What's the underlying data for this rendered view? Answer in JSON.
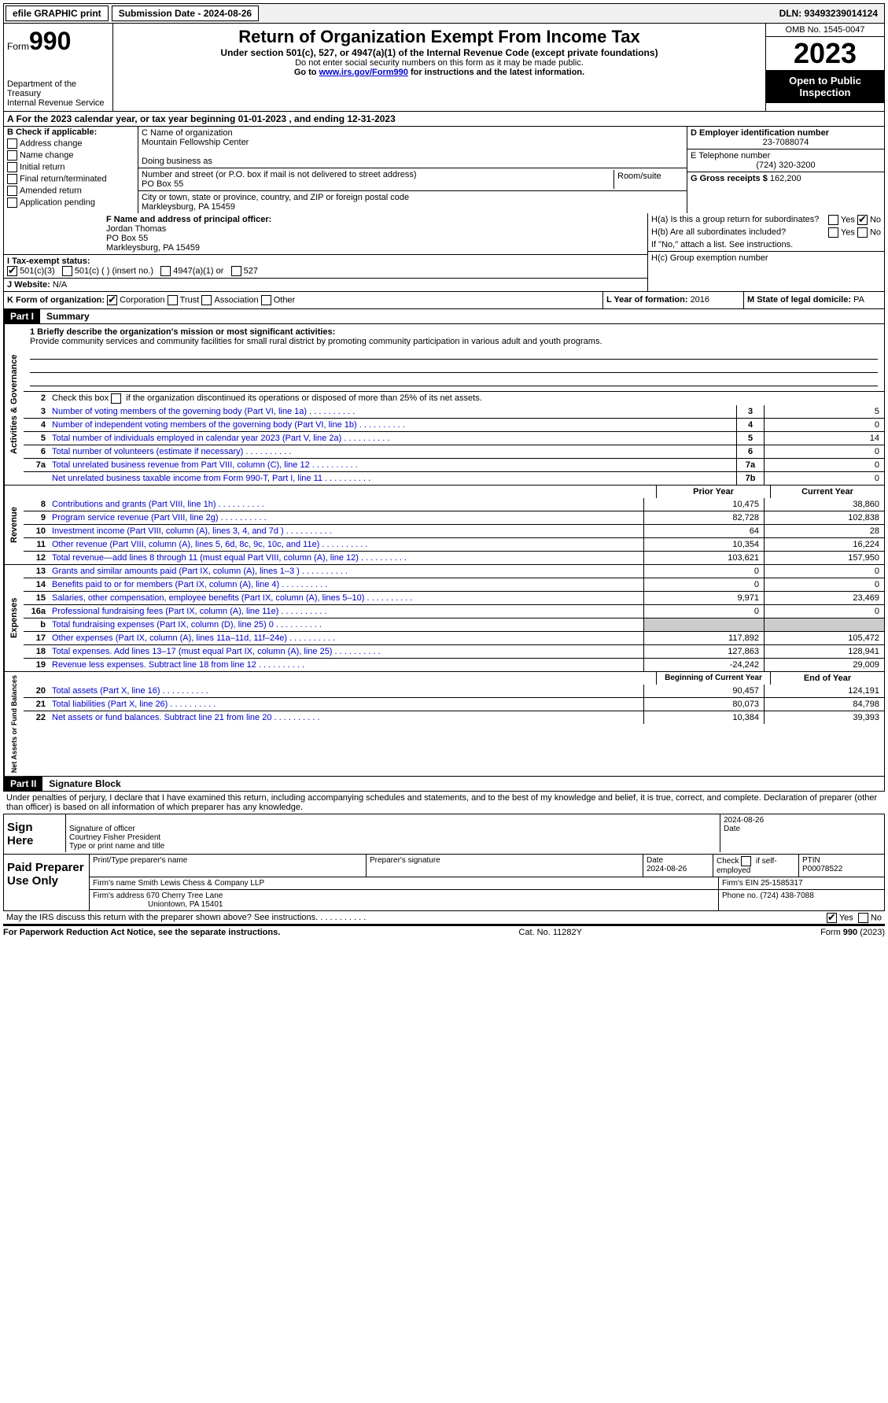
{
  "topbar": {
    "efile": "efile GRAPHIC print",
    "submission_label": "Submission Date - 2024-08-26",
    "dln": "DLN: 93493239014124"
  },
  "header": {
    "form_label": "Form",
    "form_no": "990",
    "dept": "Department of the Treasury",
    "irs": "Internal Revenue Service",
    "title": "Return of Organization Exempt From Income Tax",
    "sub1": "Under section 501(c), 527, or 4947(a)(1) of the Internal Revenue Code (except private foundations)",
    "sub2": "Do not enter social security numbers on this form as it may be made public.",
    "sub3_pre": "Go to ",
    "sub3_link": "www.irs.gov/Form990",
    "sub3_post": " for instructions and the latest information.",
    "omb": "OMB No. 1545-0047",
    "year": "2023",
    "open": "Open to Public Inspection"
  },
  "row_a": {
    "text": "A For the 2023 calendar year, or tax year beginning 01-01-2023    , and ending 12-31-2023"
  },
  "col_b": {
    "header": "B Check if applicable:",
    "items": [
      "Address change",
      "Name change",
      "Initial return",
      "Final return/terminated",
      "Amended return",
      "Application pending"
    ]
  },
  "col_c": {
    "name_label": "C Name of organization",
    "name": "Mountain Fellowship Center",
    "dba_label": "Doing business as",
    "addr_label": "Number and street (or P.O. box if mail is not delivered to street address)",
    "addr": "PO Box 55",
    "room_label": "Room/suite",
    "city_label": "City or town, state or province, country, and ZIP or foreign postal code",
    "city": "Markleysburg, PA  15459"
  },
  "col_d": {
    "ein_label": "D Employer identification number",
    "ein": "23-7088074",
    "tel_label": "E Telephone number",
    "tel": "(724) 320-3200",
    "gross_label": "G Gross receipts $",
    "gross": "162,200"
  },
  "section_f": {
    "label": "F  Name and address of principal officer:",
    "name": "Jordan Thomas",
    "addr1": "PO Box 55",
    "addr2": "Markleysburg, PA  15459"
  },
  "section_i": {
    "label": "I   Tax-exempt status:",
    "opt1": "501(c)(3)",
    "opt2": "501(c) (  ) (insert no.)",
    "opt3": "4947(a)(1) or",
    "opt4": "527"
  },
  "section_j": {
    "label": "J   Website: ",
    "value": "N/A"
  },
  "section_h": {
    "ha": "H(a)  Is this a group return for subordinates?",
    "hb": "H(b)  Are all subordinates included?",
    "hb_note": "If \"No,\" attach a list. See instructions.",
    "hc": "H(c)  Group exemption number ",
    "yes": "Yes",
    "no": "No"
  },
  "section_k": {
    "label": "K Form of organization:",
    "opts": [
      "Corporation",
      "Trust",
      "Association",
      "Other"
    ]
  },
  "section_l": {
    "label": "L Year of formation: ",
    "value": "2016"
  },
  "section_m": {
    "label": "M State of legal domicile: ",
    "value": "PA"
  },
  "part1": {
    "tab": "Part I",
    "title": "Summary",
    "sidelabels": [
      "Activities & Governance",
      "Revenue",
      "Expenses",
      "Net Assets or Fund Balances"
    ],
    "line1_label": "1   Briefly describe the organization's mission or most significant activities:",
    "line1_text": "Provide community services and community facilities for small rural district by promoting community participation in various adult and youth programs.",
    "line2": "Check this box      if the organization discontinued its operations or disposed of more than 25% of its net assets.",
    "rows_gov": [
      {
        "n": "3",
        "d": "Number of voting members of the governing body (Part VI, line 1a)",
        "box": "3",
        "v": "5"
      },
      {
        "n": "4",
        "d": "Number of independent voting members of the governing body (Part VI, line 1b)",
        "box": "4",
        "v": "0"
      },
      {
        "n": "5",
        "d": "Total number of individuals employed in calendar year 2023 (Part V, line 2a)",
        "box": "5",
        "v": "14"
      },
      {
        "n": "6",
        "d": "Total number of volunteers (estimate if necessary)",
        "box": "6",
        "v": "0"
      },
      {
        "n": "7a",
        "d": "Total unrelated business revenue from Part VIII, column (C), line 12",
        "box": "7a",
        "v": "0"
      },
      {
        "n": "",
        "d": "Net unrelated business taxable income from Form 990-T, Part I, line 11",
        "box": "7b",
        "v": "0"
      }
    ],
    "col_headers": {
      "prior": "Prior Year",
      "current": "Current Year"
    },
    "rows_rev": [
      {
        "n": "8",
        "d": "Contributions and grants (Part VIII, line 1h)",
        "p": "10,475",
        "c": "38,860"
      },
      {
        "n": "9",
        "d": "Program service revenue (Part VIII, line 2g)",
        "p": "82,728",
        "c": "102,838"
      },
      {
        "n": "10",
        "d": "Investment income (Part VIII, column (A), lines 3, 4, and 7d )",
        "p": "64",
        "c": "28"
      },
      {
        "n": "11",
        "d": "Other revenue (Part VIII, column (A), lines 5, 6d, 8c, 9c, 10c, and 11e)",
        "p": "10,354",
        "c": "16,224"
      },
      {
        "n": "12",
        "d": "Total revenue—add lines 8 through 11 (must equal Part VIII, column (A), line 12)",
        "p": "103,621",
        "c": "157,950"
      }
    ],
    "rows_exp": [
      {
        "n": "13",
        "d": "Grants and similar amounts paid (Part IX, column (A), lines 1–3 )",
        "p": "0",
        "c": "0"
      },
      {
        "n": "14",
        "d": "Benefits paid to or for members (Part IX, column (A), line 4)",
        "p": "0",
        "c": "0"
      },
      {
        "n": "15",
        "d": "Salaries, other compensation, employee benefits (Part IX, column (A), lines 5–10)",
        "p": "9,971",
        "c": "23,469"
      },
      {
        "n": "16a",
        "d": "Professional fundraising fees (Part IX, column (A), line 11e)",
        "p": "0",
        "c": "0"
      },
      {
        "n": "b",
        "d": "Total fundraising expenses (Part IX, column (D), line 25) 0",
        "p": "shade",
        "c": "shade"
      },
      {
        "n": "17",
        "d": "Other expenses (Part IX, column (A), lines 11a–11d, 11f–24e)",
        "p": "117,892",
        "c": "105,472"
      },
      {
        "n": "18",
        "d": "Total expenses. Add lines 13–17 (must equal Part IX, column (A), line 25)",
        "p": "127,863",
        "c": "128,941"
      },
      {
        "n": "19",
        "d": "Revenue less expenses. Subtract line 18 from line 12",
        "p": "-24,242",
        "c": "29,009"
      }
    ],
    "col_headers2": {
      "beg": "Beginning of Current Year",
      "end": "End of Year"
    },
    "rows_net": [
      {
        "n": "20",
        "d": "Total assets (Part X, line 16)",
        "p": "90,457",
        "c": "124,191"
      },
      {
        "n": "21",
        "d": "Total liabilities (Part X, line 26)",
        "p": "80,073",
        "c": "84,798"
      },
      {
        "n": "22",
        "d": "Net assets or fund balances. Subtract line 21 from line 20",
        "p": "10,384",
        "c": "39,393"
      }
    ]
  },
  "part2": {
    "tab": "Part II",
    "title": "Signature Block",
    "declaration": "Under penalties of perjury, I declare that I have examined this return, including accompanying schedules and statements, and to the best of my knowledge and belief, it is true, correct, and complete. Declaration of preparer (other than officer) is based on all information of which preparer has any knowledge."
  },
  "sign": {
    "here": "Sign Here",
    "sig_label": "Signature of officer",
    "date_label": "Date",
    "date": "2024-08-26",
    "name": "Courtney Fisher  President",
    "name_label": "Type or print name and title"
  },
  "paid": {
    "label": "Paid Preparer Use Only",
    "col1": "Print/Type preparer's name",
    "col2": "Preparer's signature",
    "col3_label": "Date",
    "col3": "2024-08-26",
    "col4": "Check       if self-employed",
    "col5_label": "PTIN",
    "col5": "P00078522",
    "firm_label": "Firm's name   ",
    "firm": "Smith Lewis Chess & Company LLP",
    "ein_label": "Firm's EIN  ",
    "ein": "25-1585317",
    "addr_label": "Firm's address ",
    "addr1": "670 Cherry Tree Lane",
    "addr2": "Uniontown, PA  15401",
    "phone_label": "Phone no. ",
    "phone": "(724) 438-7088"
  },
  "discuss": {
    "text": "May the IRS discuss this return with the preparer shown above? See instructions.",
    "yes": "Yes",
    "no": "No"
  },
  "footer": {
    "left": "For Paperwork Reduction Act Notice, see the separate instructions.",
    "mid": "Cat. No. 11282Y",
    "right": "Form 990 (2023)"
  }
}
